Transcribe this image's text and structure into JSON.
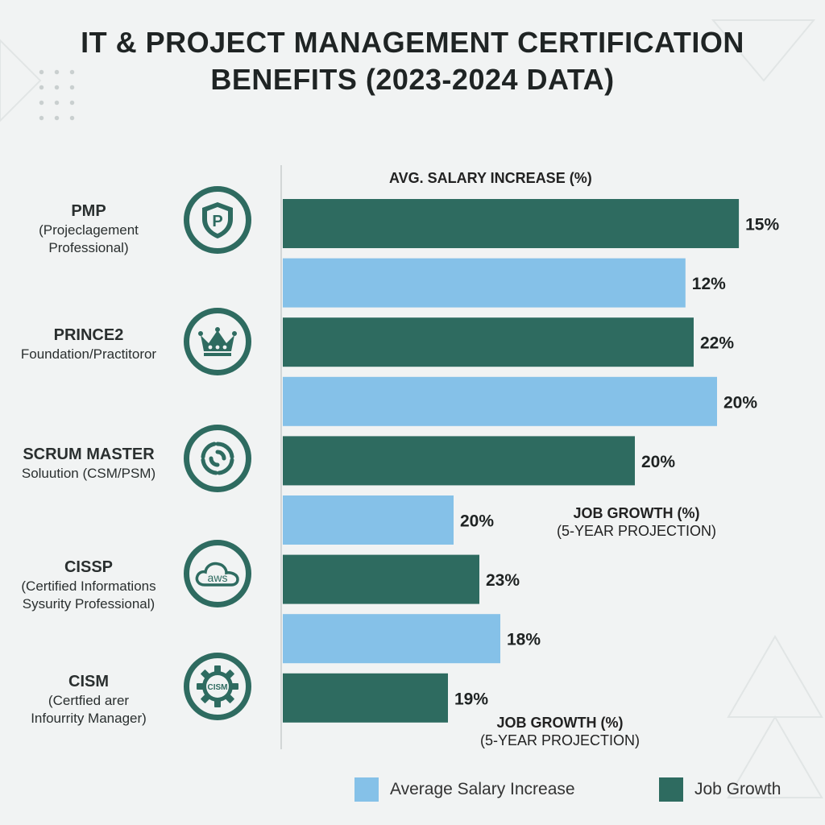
{
  "title_lines": [
    "IT & PROJECT MANAGEMENT CERTIFICATION",
    "BENEFITS (2023-2024 DATA)"
  ],
  "axis_label": "AVG. SALARY INCREASE (%)",
  "annotations": [
    {
      "line1": "JOB GROWTH (%)",
      "line2": "(5-YEAR PROJECTION)"
    },
    {
      "line1": "JOB GROWTH (%)",
      "line2": "(5-YEAR PROJECTION)"
    }
  ],
  "certifications": [
    {
      "name": "PMP",
      "desc_lines": [
        "(Projeclagement",
        "Professional)"
      ],
      "icon": "shield-p-icon"
    },
    {
      "name": "PRINCE2",
      "desc_lines": [
        "Foundation/Practitoror"
      ],
      "icon": "crown-icon"
    },
    {
      "name": "SCRUM MASTER",
      "desc_lines": [
        "Soluution (CSM/PSM)"
      ],
      "icon": "swirl-icon"
    },
    {
      "name": "CISSP",
      "desc_lines": [
        "(Certified Informations",
        "Sysurity Professional)"
      ],
      "icon": "aws-cloud-icon",
      "icon_text": "aws"
    },
    {
      "name": "CISM",
      "desc_lines": [
        "(Certfied arer",
        "Infourrity Manager)"
      ],
      "icon": "cism-gear-icon",
      "icon_text": "CISM"
    }
  ],
  "legend": [
    {
      "label": "Average Salary Increase",
      "color": "#85c1e8"
    },
    {
      "label": "Job Growth",
      "color": "#2e6b60"
    }
  ],
  "chart_data": {
    "type": "bar",
    "orientation": "horizontal",
    "title": "IT & PROJECT MANAGEMENT CERTIFICATION BENEFITS (2023-2024 DATA)",
    "categories": [
      "PMP",
      "PRINCE2",
      "SCRUM MASTER",
      "CISSP",
      "CISM"
    ],
    "bars": [
      {
        "category": "PMP",
        "series": "Job Growth",
        "value": 15,
        "label": "15%"
      },
      {
        "category": "PMP",
        "series": "Average Salary Increase",
        "value": 12,
        "label": "12%"
      },
      {
        "category": "PRINCE2",
        "series": "Job Growth",
        "value": 22,
        "label": "22%"
      },
      {
        "category": "PRINCE2",
        "series": "Average Salary Increase",
        "value": 20,
        "label": "20%"
      },
      {
        "category": "SCRUM MASTER",
        "series": "Job Growth",
        "value": 20,
        "label": "20%"
      },
      {
        "category": "SCRUM MASTER",
        "series": "Average Salary Increase",
        "value": 20,
        "label": "20%"
      },
      {
        "category": "CISSP",
        "series": "Job Growth",
        "value": 23,
        "label": "23%"
      },
      {
        "category": "CISSP",
        "series": "Average Salary Increase",
        "value": 18,
        "label": "18%"
      },
      {
        "category": "CISM",
        "series": "Job Growth",
        "value": 19,
        "label": "19%"
      }
    ],
    "series_colors": {
      "Job Growth": "#2e6b60",
      "Average Salary Increase": "#85c1e8"
    },
    "legend_position": "bottom-right",
    "grid": false
  }
}
